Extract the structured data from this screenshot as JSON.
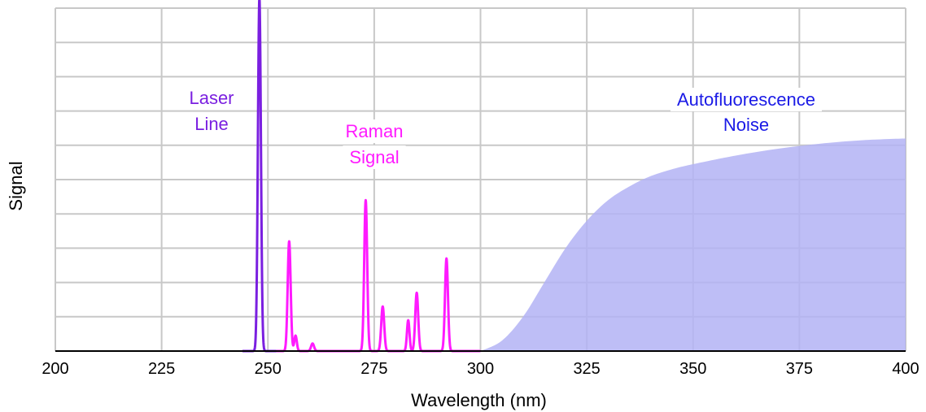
{
  "chart_data": {
    "type": "line",
    "title": "",
    "xlabel": "Wavelength (nm)",
    "ylabel": "Signal",
    "xlim": [
      200,
      400
    ],
    "ylim": [
      0,
      10
    ],
    "xticks": [
      "200",
      "225",
      "250",
      "275",
      "300",
      "325",
      "350",
      "375",
      "400"
    ],
    "grid": true,
    "show_y_tick_labels": false,
    "colors": {
      "laser": "#7a1fe0",
      "raman": "#ff1aff",
      "autofluorescence_fill": "#b3b3f5",
      "autofluorescence_text": "#1a1ae6",
      "grid": "#c8c8c8",
      "axis": "#000000"
    },
    "laser_line": {
      "label": [
        "Laser",
        "Line"
      ],
      "baseline_range": [
        244,
        252
      ],
      "peaks": [
        {
          "x": 248,
          "height": 10.3,
          "width": 0.35
        }
      ]
    },
    "raman_signal": {
      "label": [
        "Raman",
        "Signal"
      ],
      "baseline_range": [
        252,
        300
      ],
      "peaks": [
        {
          "x": 255,
          "height": 3.2,
          "width": 0.35
        },
        {
          "x": 256.5,
          "height": 0.45,
          "width": 0.3
        },
        {
          "x": 260.5,
          "height": 0.22,
          "width": 0.35
        },
        {
          "x": 273,
          "height": 4.4,
          "width": 0.35
        },
        {
          "x": 277,
          "height": 1.3,
          "width": 0.35
        },
        {
          "x": 283,
          "height": 0.9,
          "width": 0.3
        },
        {
          "x": 285,
          "height": 1.7,
          "width": 0.35
        },
        {
          "x": 292,
          "height": 2.7,
          "width": 0.35
        }
      ]
    },
    "autofluorescence": {
      "label": [
        "Autofluorescence",
        "Noise"
      ],
      "points": [
        [
          300,
          0
        ],
        [
          305,
          0.3
        ],
        [
          310,
          1.0
        ],
        [
          315,
          2.0
        ],
        [
          320,
          3.0
        ],
        [
          325,
          3.8
        ],
        [
          330,
          4.4
        ],
        [
          335,
          4.8
        ],
        [
          340,
          5.1
        ],
        [
          345,
          5.3
        ],
        [
          350,
          5.45
        ],
        [
          360,
          5.7
        ],
        [
          370,
          5.9
        ],
        [
          380,
          6.05
        ],
        [
          390,
          6.15
        ],
        [
          400,
          6.2
        ]
      ]
    }
  }
}
